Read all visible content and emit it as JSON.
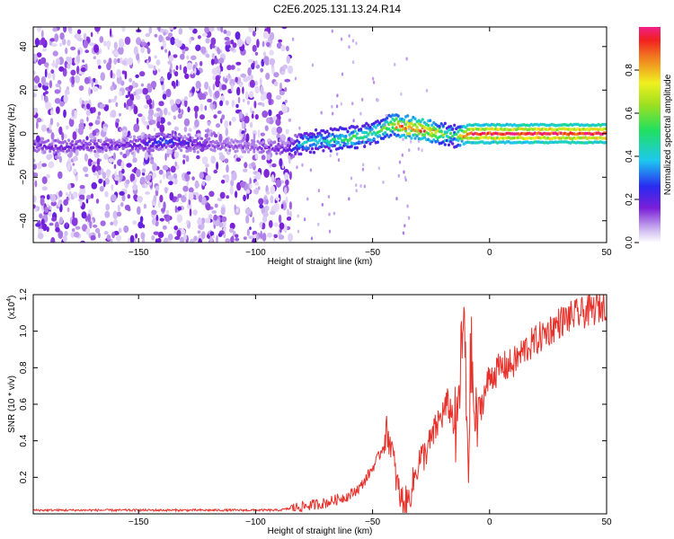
{
  "title": "C2E6.2025.131.13.24.R14",
  "chart_data": [
    {
      "type": "heatmap",
      "title": "C2E6.2025.131.13.24.R14",
      "xlabel": "Height of straight line (km)",
      "ylabel": "Frequency (Hz)",
      "xlim": [
        -195,
        50
      ],
      "ylim": [
        -50,
        49
      ],
      "x_ticks": [
        -150,
        -100,
        -50,
        0,
        50
      ],
      "y_ticks": [
        -40,
        -20,
        0,
        20,
        40
      ],
      "grid": false,
      "colorbar": {
        "label": "Normalized spectral amplitude",
        "range": [
          0.0,
          1.0
        ],
        "ticks": [
          0.0,
          0.2,
          0.4,
          0.6,
          0.8
        ],
        "colormap": "rainbow (white-violet-blue-cyan-green-yellow-red-magenta)"
      },
      "ridge": {
        "description": "frequency of maximum spectral amplitude vs height",
        "x": [
          -195,
          -150,
          -140,
          -120,
          -100,
          -85,
          -80,
          -70,
          -60,
          -50,
          -45,
          -40,
          -35,
          -30,
          -25,
          -20,
          -15,
          -10,
          0,
          10,
          20,
          30,
          40,
          50
        ],
        "frequency": [
          -6,
          -5,
          -3,
          -5,
          -6,
          -7,
          -4,
          -3,
          -2,
          0,
          3,
          4,
          3,
          2,
          1,
          0,
          -1,
          0,
          0,
          0,
          0,
          0,
          0,
          0
        ],
        "amplitude": [
          0.15,
          0.18,
          0.28,
          0.15,
          0.12,
          0.2,
          0.4,
          0.45,
          0.5,
          0.5,
          0.55,
          0.75,
          0.85,
          0.9,
          0.8,
          0.6,
          0.45,
          0.95,
          0.95,
          0.95,
          0.98,
          0.98,
          0.98,
          0.98
        ]
      }
    },
    {
      "type": "line",
      "xlabel": "Height of straight line (km)",
      "ylabel": "SNR (10 * v/v)",
      "y_multiplier": "(x10",
      "y_multiplier_exp": "4",
      "xlim": [
        -195,
        50
      ],
      "ylim": [
        0,
        1.2
      ],
      "x_ticks": [
        -150,
        -100,
        -50,
        0,
        50
      ],
      "y_ticks": [
        0.2,
        0.4,
        0.6,
        0.8,
        1.0,
        1.2
      ],
      "color": "#e8312a",
      "series": [
        {
          "x": [
            -195,
            -150,
            -100,
            -90,
            -80,
            -70,
            -60,
            -55,
            -50,
            -46,
            -44,
            -42,
            -40,
            -38,
            -35,
            -30,
            -28,
            -25,
            -22,
            -20,
            -18,
            -16,
            -14,
            -13,
            -12,
            -11,
            -10,
            -9,
            -8,
            -7,
            -6,
            -5,
            -3,
            0,
            5,
            10,
            15,
            20,
            25,
            30,
            35,
            40,
            45,
            50
          ],
          "values": [
            0.02,
            0.02,
            0.02,
            0.02,
            0.04,
            0.06,
            0.1,
            0.15,
            0.25,
            0.35,
            0.45,
            0.38,
            0.2,
            0.08,
            0.06,
            0.3,
            0.32,
            0.4,
            0.5,
            0.55,
            0.6,
            0.55,
            0.4,
            0.7,
            0.85,
            1.1,
            0.6,
            0.3,
            0.9,
            0.65,
            0.45,
            0.55,
            0.62,
            0.75,
            0.8,
            0.82,
            0.9,
            0.95,
            1.0,
            1.05,
            1.08,
            1.1,
            1.12,
            1.15
          ]
        }
      ]
    }
  ]
}
